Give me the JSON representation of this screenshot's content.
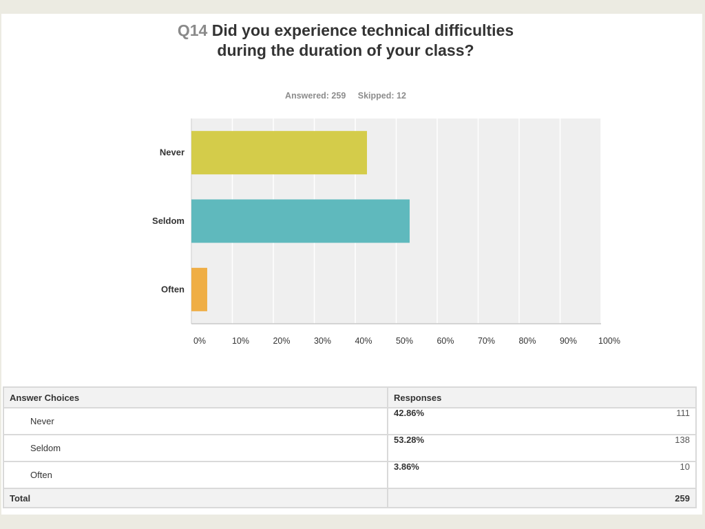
{
  "header": {
    "qnum": "Q14",
    "question": "Did you experience technical difficulties during the duration of your class?",
    "answered": "Answered: 259",
    "skipped": "Skipped: 12"
  },
  "chart_data": {
    "type": "bar",
    "orientation": "horizontal",
    "categories": [
      "Never",
      "Seldom",
      "Often"
    ],
    "values": [
      42.86,
      53.28,
      3.86
    ],
    "colors": [
      "#d4cc4a",
      "#5fb9bd",
      "#efae45"
    ],
    "xlim": [
      0,
      100
    ],
    "xticks": [
      "0%",
      "10%",
      "20%",
      "30%",
      "40%",
      "50%",
      "60%",
      "70%",
      "80%",
      "90%",
      "100%"
    ],
    "grid": true,
    "plot_background": "#efefef"
  },
  "table": {
    "headers": [
      "Answer Choices",
      "Responses"
    ],
    "rows": [
      {
        "choice": "Never",
        "pct": "42.86%",
        "count": "111"
      },
      {
        "choice": "Seldom",
        "pct": "53.28%",
        "count": "138"
      },
      {
        "choice": "Often",
        "pct": "3.86%",
        "count": "10"
      }
    ],
    "total_label": "Total",
    "total_count": "259"
  }
}
